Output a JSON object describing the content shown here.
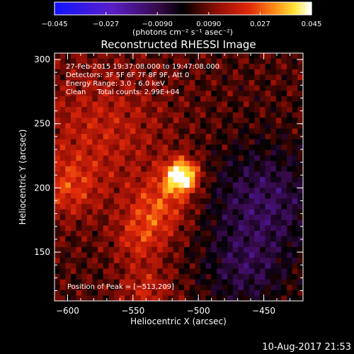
{
  "chart_data": {
    "type": "heatmap",
    "title": "Reconstructed RHESSI Image",
    "xlabel": "Heliocentric X (arcsec)",
    "ylabel": "Heliocentric Y (arcsec)",
    "xlim": [
      -610,
      -420
    ],
    "ylim": [
      112,
      305
    ],
    "xticks": [
      -600,
      -550,
      -500,
      -450
    ],
    "yticks": [
      150,
      200,
      250,
      300
    ],
    "colorbar": {
      "unit_label": "(photons cm⁻² s⁻¹ asec⁻²)",
      "ticks": [
        -0.045,
        -0.027,
        -0.009,
        0.009,
        0.027,
        0.045
      ],
      "tick_labels": [
        "−0.045",
        "−0.027",
        "−0.0090",
        "0.0090",
        "0.027",
        "0.045"
      ],
      "range": [
        -0.045,
        0.045
      ]
    },
    "annotations": [
      "27-Feb-2015 19:37:08.000 to 19:47:08.000",
      "Detectors: 3F 5F 6F 7F 8F 9F, Att 0",
      "Energy Range: 3.0 - 6.0 keV",
      "Clean     Total counts: 2.99E+04"
    ],
    "peak_text": "Position of Peak = [−513,209]",
    "peak": [
      -513,
      209
    ],
    "peak_value": 0.045,
    "sources": [
      {
        "x": -513,
        "y": 209,
        "sigma": 9,
        "amp": 0.045
      },
      {
        "x": -530,
        "y": 185,
        "sigma": 16,
        "amp": 0.018
      },
      {
        "x": -545,
        "y": 160,
        "sigma": 14,
        "amp": 0.013
      },
      {
        "x": -600,
        "y": 200,
        "sigma": 16,
        "amp": 0.014
      },
      {
        "x": -575,
        "y": 245,
        "sigma": 35,
        "amp": 0.012
      },
      {
        "x": -540,
        "y": 120,
        "sigma": 14,
        "amp": 0.012
      },
      {
        "x": -450,
        "y": 190,
        "sigma": 30,
        "amp": -0.016
      },
      {
        "x": -465,
        "y": 135,
        "sigma": 22,
        "amp": -0.012
      }
    ],
    "colormap": "rainbow-purple-red-yellow-white"
  },
  "footer": {
    "date": "10-Aug-2017 21:53"
  }
}
